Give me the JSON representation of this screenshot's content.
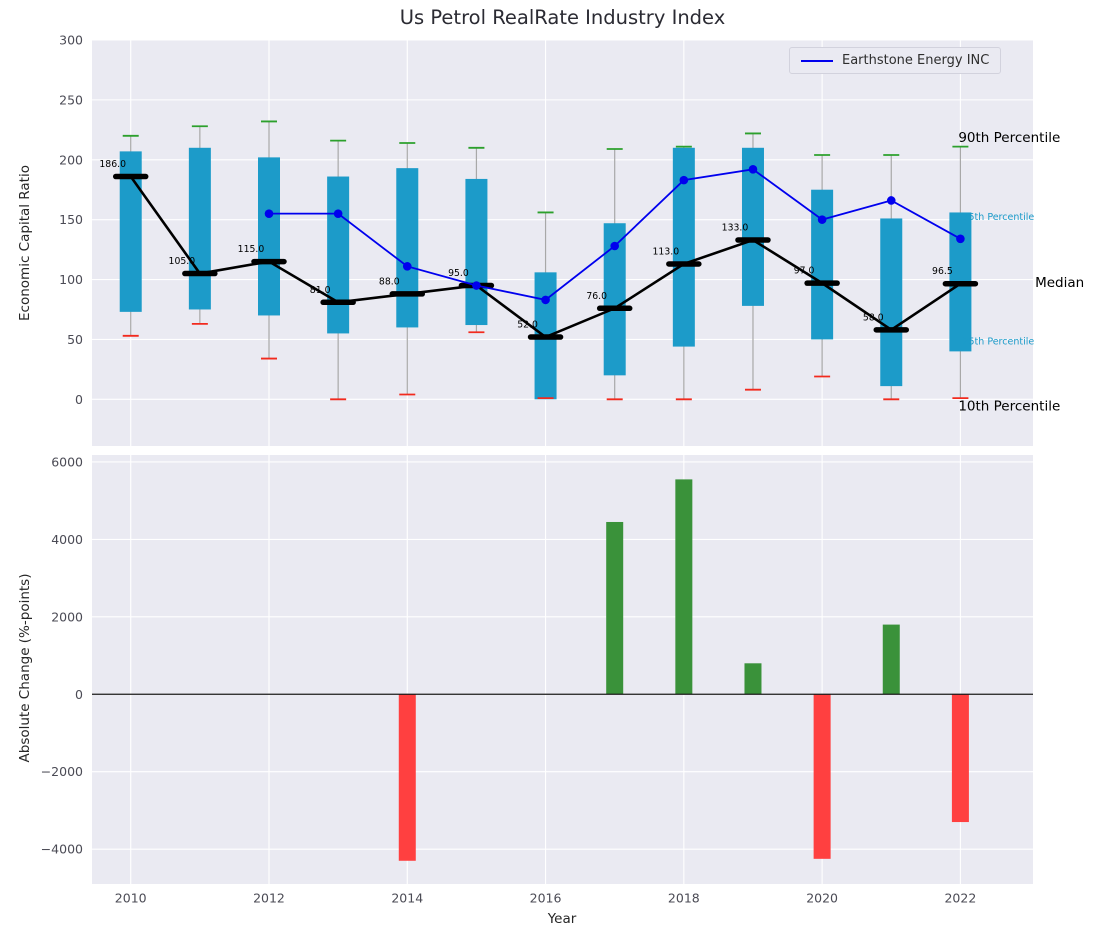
{
  "figure": {
    "background": "#ffffff",
    "plot_background": "#eaeaf2",
    "grid_color": "#ffffff",
    "tick_color": "#4b4b55"
  },
  "chart_data": [
    {
      "type": "box-line",
      "title": "Us Petrol RealRate Industry Index",
      "ylabel": "Economic Capital Ratio",
      "legend": "Earthstone Energy INC",
      "ylim": [
        -39,
        300
      ],
      "yticks": [
        0,
        50,
        100,
        150,
        200,
        250,
        300
      ],
      "xlim": [
        2009.44,
        2023.05
      ],
      "categories": [
        2010,
        2011,
        2012,
        2013,
        2014,
        2015,
        2016,
        2017,
        2018,
        2019,
        2020,
        2021,
        2022
      ],
      "box": {
        "color": "#1c9bc9",
        "p90_color": "#2ca02c",
        "p10_color": "#f22a1e",
        "whisker_color": "#a8a8a8",
        "p90": [
          220,
          228,
          232,
          216,
          214,
          210,
          156,
          209,
          211,
          222,
          204,
          204,
          211
        ],
        "p75": [
          207,
          210,
          202,
          186,
          193,
          184,
          106,
          147,
          210,
          210,
          175,
          151,
          156
        ],
        "p25": [
          73,
          75,
          70,
          55,
          60,
          62,
          0,
          20,
          44,
          78,
          50,
          11,
          40
        ],
        "p10": [
          53,
          63,
          34,
          0,
          4,
          56,
          1,
          0,
          0,
          8,
          19,
          0,
          1
        ]
      },
      "median": {
        "color": "#000000",
        "values": [
          186,
          105,
          115,
          81,
          88,
          95,
          52,
          76,
          113,
          133,
          97,
          58,
          96.5
        ],
        "labels": [
          "186.0",
          "105.0",
          "115.0",
          "81.0",
          "88.0",
          "95.0",
          "52.0",
          "76.0",
          "113.0",
          "133.0",
          "97.0",
          "58.0",
          "96.5"
        ]
      },
      "company_line": {
        "name": "Earthstone Energy INC",
        "color": "#0000ee",
        "x": [
          2012,
          2013,
          2014,
          2015,
          2016,
          2017,
          2018,
          2019,
          2020,
          2021,
          2022
        ],
        "values": [
          155,
          155,
          111,
          95,
          83,
          128,
          183,
          192,
          150,
          166,
          134
        ]
      },
      "annotations": [
        {
          "text": "90th Percentile",
          "x": 2021.97,
          "y": 218,
          "color": "#000000",
          "size": 13.5
        },
        {
          "text": "75th Percentile",
          "x": 2022.03,
          "y": 152,
          "color": "#1c9bc9",
          "size": 9.5
        },
        {
          "text": "Median",
          "x": 2023.08,
          "y": 97,
          "color": "#000000",
          "size": 13.5
        },
        {
          "text": "25th Percentile",
          "x": 2022.03,
          "y": 48,
          "color": "#1c9bc9",
          "size": 9.5
        },
        {
          "text": "10th Percentile",
          "x": 2021.97,
          "y": -6,
          "color": "#000000",
          "size": 13.5
        }
      ]
    },
    {
      "type": "bar",
      "ylabel": "Absolute Change (%-points)",
      "xlabel": "Year",
      "ylim": [
        -4900,
        6180
      ],
      "yticks": [
        -4000,
        -2000,
        0,
        2000,
        4000,
        6000
      ],
      "xticks": [
        2010,
        2012,
        2014,
        2016,
        2018,
        2020,
        2022
      ],
      "categories": [
        2010,
        2011,
        2012,
        2013,
        2014,
        2015,
        2016,
        2017,
        2018,
        2019,
        2020,
        2021,
        2022
      ],
      "values": [
        0,
        0,
        0,
        0,
        -4300,
        0,
        0,
        4450,
        5550,
        800,
        -4250,
        1800,
        -3300
      ],
      "positive_color": "#3a923a",
      "negative_color": "#ff4040"
    }
  ]
}
